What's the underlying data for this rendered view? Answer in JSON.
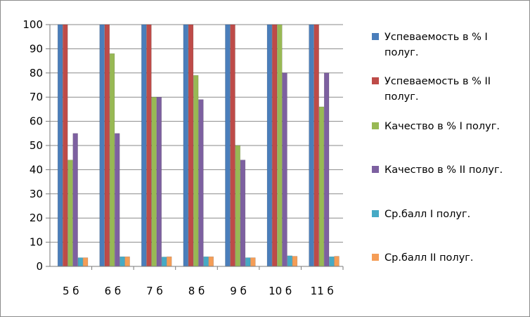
{
  "chart_data": {
    "type": "bar",
    "categories": [
      "5 б",
      "6 б",
      "7 б",
      "8 б",
      "9 б",
      "10 б",
      "11 б"
    ],
    "ylim": [
      0,
      100
    ],
    "yticks": [
      0,
      10,
      20,
      30,
      40,
      50,
      60,
      70,
      80,
      90,
      100
    ],
    "grid": true,
    "legend_position": "right",
    "series": [
      {
        "name": "Успеваемость в % I полуг.",
        "name_lines": [
          "Успеваемость в % I",
          "полуг."
        ],
        "color": "#4a7ebb",
        "values": [
          100,
          100,
          100,
          100,
          100,
          100,
          100
        ]
      },
      {
        "name": "Успеваемость в % II полуг.",
        "name_lines": [
          "Успеваемость в % II",
          "полуг."
        ],
        "color": "#be4b48",
        "values": [
          100,
          100,
          100,
          100,
          100,
          100,
          100
        ]
      },
      {
        "name": "Качество в % I полуг.",
        "name_lines": [
          "Качество в % I полуг."
        ],
        "color": "#98b954",
        "values": [
          44,
          88,
          70,
          79,
          50,
          100,
          66
        ]
      },
      {
        "name": "Качество в % II полуг.",
        "name_lines": [
          "Качество в % II полуг."
        ],
        "color": "#7d60a0",
        "values": [
          55,
          55,
          70,
          69,
          44,
          80,
          80
        ]
      },
      {
        "name": "Ср.балл I полуг.",
        "name_lines": [
          "Ср.балл I полуг."
        ],
        "color": "#46aac5",
        "values": [
          3.6,
          4,
          3.9,
          4,
          3.6,
          4.4,
          4
        ]
      },
      {
        "name": "Ср.балл II полуг.",
        "name_lines": [
          "Ср.балл II полуг."
        ],
        "color": "#f59d56",
        "values": [
          3.6,
          4,
          4,
          4,
          3.6,
          4.2,
          4.2
        ]
      }
    ]
  }
}
